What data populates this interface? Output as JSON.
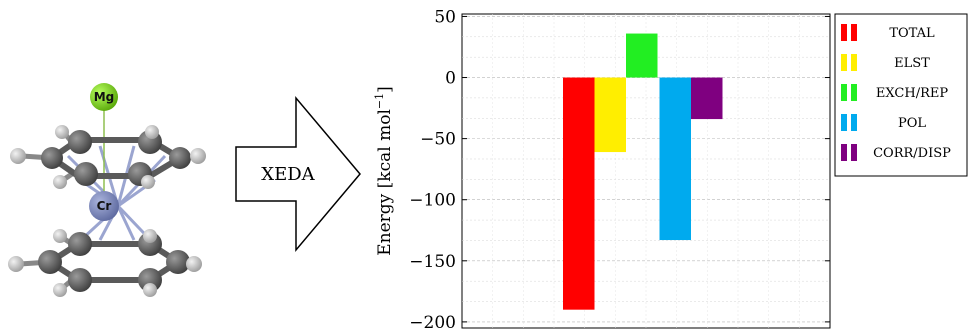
{
  "molecule": {
    "atoms": {
      "metal_top": "Mg",
      "metal_center": "Cr"
    }
  },
  "arrow": {
    "label": "XEDA"
  },
  "chart_data": {
    "type": "bar",
    "title": "",
    "xlabel": "",
    "ylabel": "Energy [kcal mol",
    "ylabel_unit_superscript": "−1",
    "ylabel_close": "]",
    "ylim": [
      -205,
      52
    ],
    "yticks": [
      50,
      0,
      -50,
      -100,
      -150,
      -200
    ],
    "ytick_labels": [
      "50",
      "0",
      "−50",
      "−100",
      "−150",
      "−200"
    ],
    "grid": true,
    "legend_position": "outside-right",
    "categories": [
      "TOTAL",
      "ELST",
      "EXCH/REP",
      "POL",
      "CORR/DISP"
    ],
    "values": [
      -190,
      -61,
      36,
      -133,
      -34
    ],
    "colors": [
      "#ff0000",
      "#ffee00",
      "#22ee22",
      "#00aaee",
      "#7f0080"
    ]
  }
}
